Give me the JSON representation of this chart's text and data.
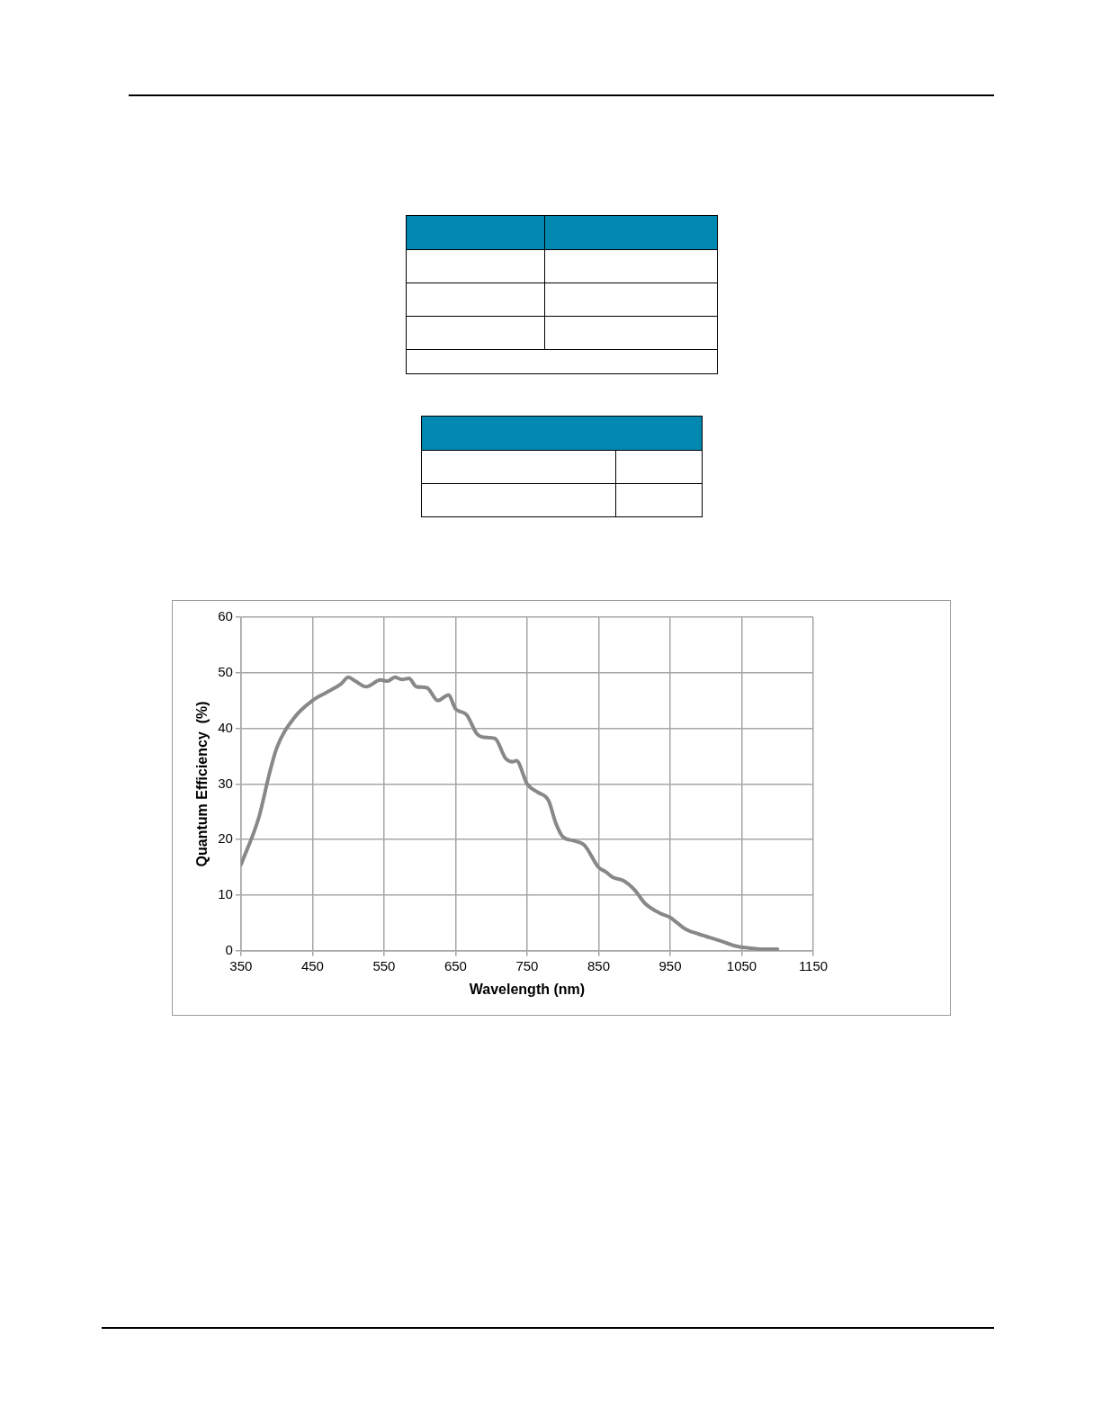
{
  "chart_data": {
    "type": "line",
    "xlabel": "Wavelength (nm)",
    "ylabel": "Quantum Efficiency  (%)",
    "xlim": [
      350,
      1150
    ],
    "xticks": [
      350,
      450,
      550,
      650,
      750,
      850,
      950,
      1050,
      1150
    ],
    "ylim": [
      0,
      60
    ],
    "yticks": [
      0,
      10,
      20,
      30,
      40,
      50,
      60
    ],
    "grid": true,
    "legend": false,
    "marker": "none",
    "line_style": "solid",
    "series": [
      {
        "color": "#888888",
        "x": [
          350,
          375,
          390,
          400,
          425,
          450,
          470,
          490,
          500,
          510,
          525,
          545,
          555,
          565,
          575,
          585,
          595,
          610,
          625,
          640,
          650,
          665,
          680,
          690,
          705,
          720,
          730,
          735,
          750,
          765,
          780,
          790,
          800,
          815,
          830,
          850,
          860,
          870,
          885,
          900,
          915,
          935,
          950,
          970,
          990,
          1000,
          1020,
          1040,
          1060,
          1080,
          1100
        ],
        "values": [
          15.5,
          24,
          32,
          36.5,
          42,
          45,
          46.5,
          48,
          49.2,
          48.5,
          47.5,
          48.7,
          48.5,
          49.2,
          48.8,
          49,
          47.5,
          47.3,
          45,
          46,
          43.5,
          42.5,
          39,
          38.4,
          38.2,
          34.6,
          34,
          34.2,
          30,
          28.5,
          27,
          23,
          20.5,
          19.8,
          19,
          15,
          14.2,
          13.2,
          12.6,
          11,
          8.5,
          6.8,
          6,
          4,
          3,
          2.6,
          1.8,
          0.9,
          0.5,
          0.3,
          0.3
        ]
      }
    ]
  }
}
